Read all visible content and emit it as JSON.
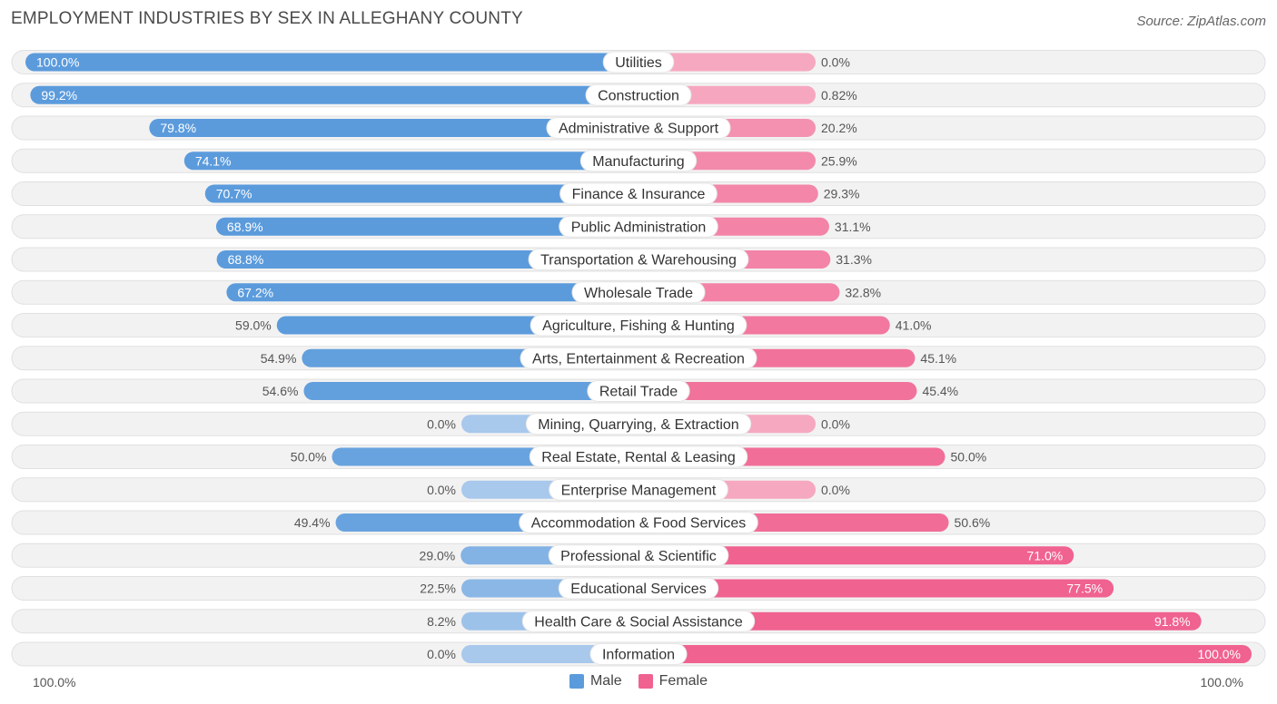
{
  "title": "EMPLOYMENT INDUSTRIES BY SEX IN ALLEGHANY COUNTY",
  "source": "Source: ZipAtlas.com",
  "colors": {
    "male_strong": "#5b9bdc",
    "male_light": "#a8c8ec",
    "female_strong": "#f06290",
    "female_light": "#f6a8c0",
    "row_bg": "#f2f2f2",
    "row_border": "#e0e0e0"
  },
  "chart_data": {
    "type": "bar",
    "orientation": "horizontal-diverging",
    "title": "EMPLOYMENT INDUSTRIES BY SEX IN ALLEGHANY COUNTY",
    "categories": [
      "Utilities",
      "Construction",
      "Administrative & Support",
      "Manufacturing",
      "Finance & Insurance",
      "Public Administration",
      "Transportation & Warehousing",
      "Wholesale Trade",
      "Agriculture, Fishing & Hunting",
      "Arts, Entertainment & Recreation",
      "Retail Trade",
      "Mining, Quarrying, & Extraction",
      "Real Estate, Rental & Leasing",
      "Enterprise Management",
      "Accommodation & Food Services",
      "Professional & Scientific",
      "Educational Services",
      "Health Care & Social Assistance",
      "Information"
    ],
    "series": [
      {
        "name": "Male",
        "values": [
          100.0,
          99.2,
          79.8,
          74.1,
          70.7,
          68.9,
          68.8,
          67.2,
          59.0,
          54.9,
          54.6,
          0.0,
          50.0,
          0.0,
          49.4,
          29.0,
          22.5,
          8.2,
          0.0
        ],
        "labels": [
          "100.0%",
          "99.2%",
          "79.8%",
          "74.1%",
          "70.7%",
          "68.9%",
          "68.8%",
          "67.2%",
          "59.0%",
          "54.9%",
          "54.6%",
          "0.0%",
          "50.0%",
          "0.0%",
          "49.4%",
          "29.0%",
          "22.5%",
          "8.2%",
          "0.0%"
        ]
      },
      {
        "name": "Female",
        "values": [
          0.0,
          0.82,
          20.2,
          25.9,
          29.3,
          31.1,
          31.3,
          32.8,
          41.0,
          45.1,
          45.4,
          0.0,
          50.0,
          0.0,
          50.6,
          71.0,
          77.5,
          91.8,
          100.0
        ],
        "labels": [
          "0.0%",
          "0.82%",
          "20.2%",
          "25.9%",
          "29.3%",
          "31.1%",
          "31.3%",
          "32.8%",
          "41.0%",
          "45.1%",
          "45.4%",
          "0.0%",
          "50.0%",
          "0.0%",
          "50.6%",
          "71.0%",
          "77.5%",
          "91.8%",
          "100.0%"
        ]
      }
    ],
    "xlim": [
      -100,
      100
    ],
    "axis_left_label": "100.0%",
    "axis_right_label": "100.0%",
    "legend": [
      "Male",
      "Female"
    ],
    "legend_position": "bottom-center"
  }
}
